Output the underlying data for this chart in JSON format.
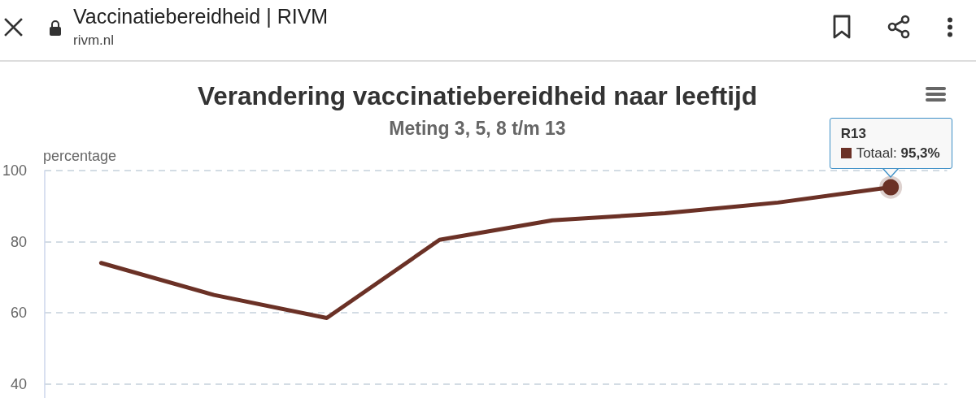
{
  "chart_data": {
    "type": "line",
    "title": "Verandering vaccinatiebereidheid naar leeftijd",
    "subtitle": "Meting 3, 5, 8 t/m 13",
    "ylabel": "percentage",
    "annotations": [
      "Vaccinatiebereidheid | RIVM",
      "rivm.nl",
      {
        "text": "Totaal: 95,3%",
        "x": "R13",
        "y": 95.3
      }
    ],
    "categories": [
      null,
      null,
      null,
      null,
      null,
      null,
      null,
      "R13"
    ],
    "series": [
      {
        "color": "#6b3126",
        "values": [
          74,
          65,
          58.5,
          80.5,
          86,
          88,
          91,
          95.3
        ]
      }
    ],
    "ylim": [
      36,
      100
    ],
    "yticks": [
      40,
      60,
      80,
      100
    ],
    "grid": "y",
    "tick_labels": "y",
    "marker": "none",
    "line_style": "solid"
  }
}
